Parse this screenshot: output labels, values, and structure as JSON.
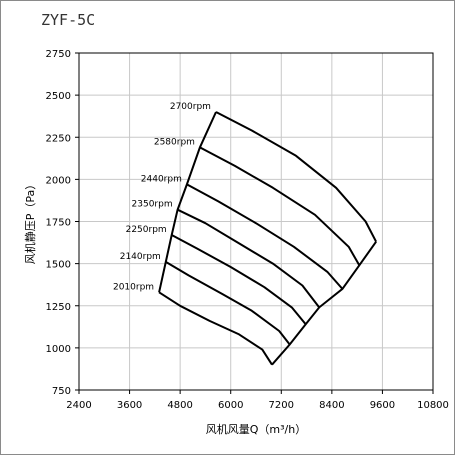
{
  "chart_data": {
    "type": "line",
    "title": "ZYF-5C",
    "xlabel": "风机风量Q（m³/h）",
    "ylabel": "风机静压P（Pa）",
    "xlim": [
      2400,
      10800
    ],
    "ylim": [
      750,
      2750
    ],
    "xticks": [
      2400,
      3600,
      4800,
      6000,
      7200,
      8400,
      9600,
      10800
    ],
    "yticks": [
      750,
      1000,
      1250,
      1500,
      1750,
      2000,
      2250,
      2500,
      2750
    ],
    "grid": true,
    "series": [
      {
        "name": "2010rpm",
        "x": [
          4300,
          4800,
          5500,
          6200,
          6750,
          6980
        ],
        "y": [
          1330,
          1250,
          1160,
          1080,
          990,
          900
        ]
      },
      {
        "name": "2140rpm",
        "x": [
          4460,
          5000,
          5800,
          6500,
          7150,
          7400
        ],
        "y": [
          1510,
          1430,
          1320,
          1220,
          1100,
          1020
        ]
      },
      {
        "name": "2250rpm",
        "x": [
          4600,
          5200,
          6000,
          6800,
          7450,
          7780
        ],
        "y": [
          1670,
          1590,
          1480,
          1360,
          1240,
          1140
        ]
      },
      {
        "name": "2350rpm",
        "x": [
          4740,
          5400,
          6200,
          7000,
          7700,
          8100
        ],
        "y": [
          1820,
          1740,
          1620,
          1500,
          1370,
          1240
        ]
      },
      {
        "name": "2440rpm",
        "x": [
          4960,
          5700,
          6600,
          7500,
          8300,
          8650
        ],
        "y": [
          1970,
          1870,
          1740,
          1600,
          1450,
          1350
        ]
      },
      {
        "name": "2580rpm",
        "x": [
          5270,
          6100,
          7000,
          8000,
          8800,
          9050
        ],
        "y": [
          2190,
          2080,
          1950,
          1790,
          1600,
          1490
        ]
      },
      {
        "name": "2700rpm",
        "x": [
          5650,
          6500,
          7550,
          8500,
          9200,
          9450
        ],
        "y": [
          2400,
          2290,
          2140,
          1950,
          1750,
          1630
        ]
      }
    ]
  }
}
